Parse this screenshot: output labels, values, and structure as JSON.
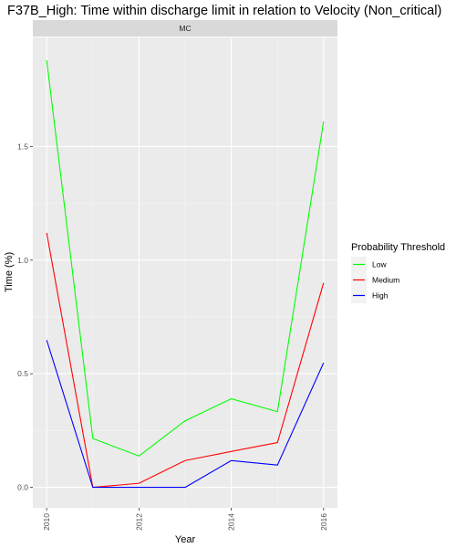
{
  "chart_data": {
    "type": "line",
    "title": "F37B_High: Time within discharge limit in relation to Velocity (Non_critical)",
    "facet_label": "MC",
    "xlabel": "Year",
    "ylabel": "Time (%)",
    "x": [
      2010,
      2011,
      2012,
      2013,
      2014,
      2015,
      2016
    ],
    "x_ticks": [
      2010,
      2012,
      2014,
      2016
    ],
    "y_ticks": [
      0.0,
      0.5,
      1.0,
      1.5
    ],
    "y_tick_labels": [
      "0.0",
      "0.5",
      "1.0",
      "1.5"
    ],
    "xlim": [
      2009.7,
      2016.3
    ],
    "ylim": [
      -0.09,
      1.98
    ],
    "grid": true,
    "legend": {
      "title": "Probability Threshold",
      "placement": "right"
    },
    "series": [
      {
        "name": "Low",
        "color": "#00ff00",
        "values": [
          1.88,
          0.215,
          0.138,
          0.293,
          0.39,
          0.333,
          1.61
        ]
      },
      {
        "name": "Medium",
        "color": "#ff0000",
        "values": [
          1.12,
          0.0,
          0.018,
          0.118,
          0.158,
          0.197,
          0.9
        ]
      },
      {
        "name": "High",
        "color": "#0000ff",
        "values": [
          0.648,
          0.0,
          0.0,
          0.0,
          0.118,
          0.098,
          0.548
        ]
      }
    ]
  }
}
